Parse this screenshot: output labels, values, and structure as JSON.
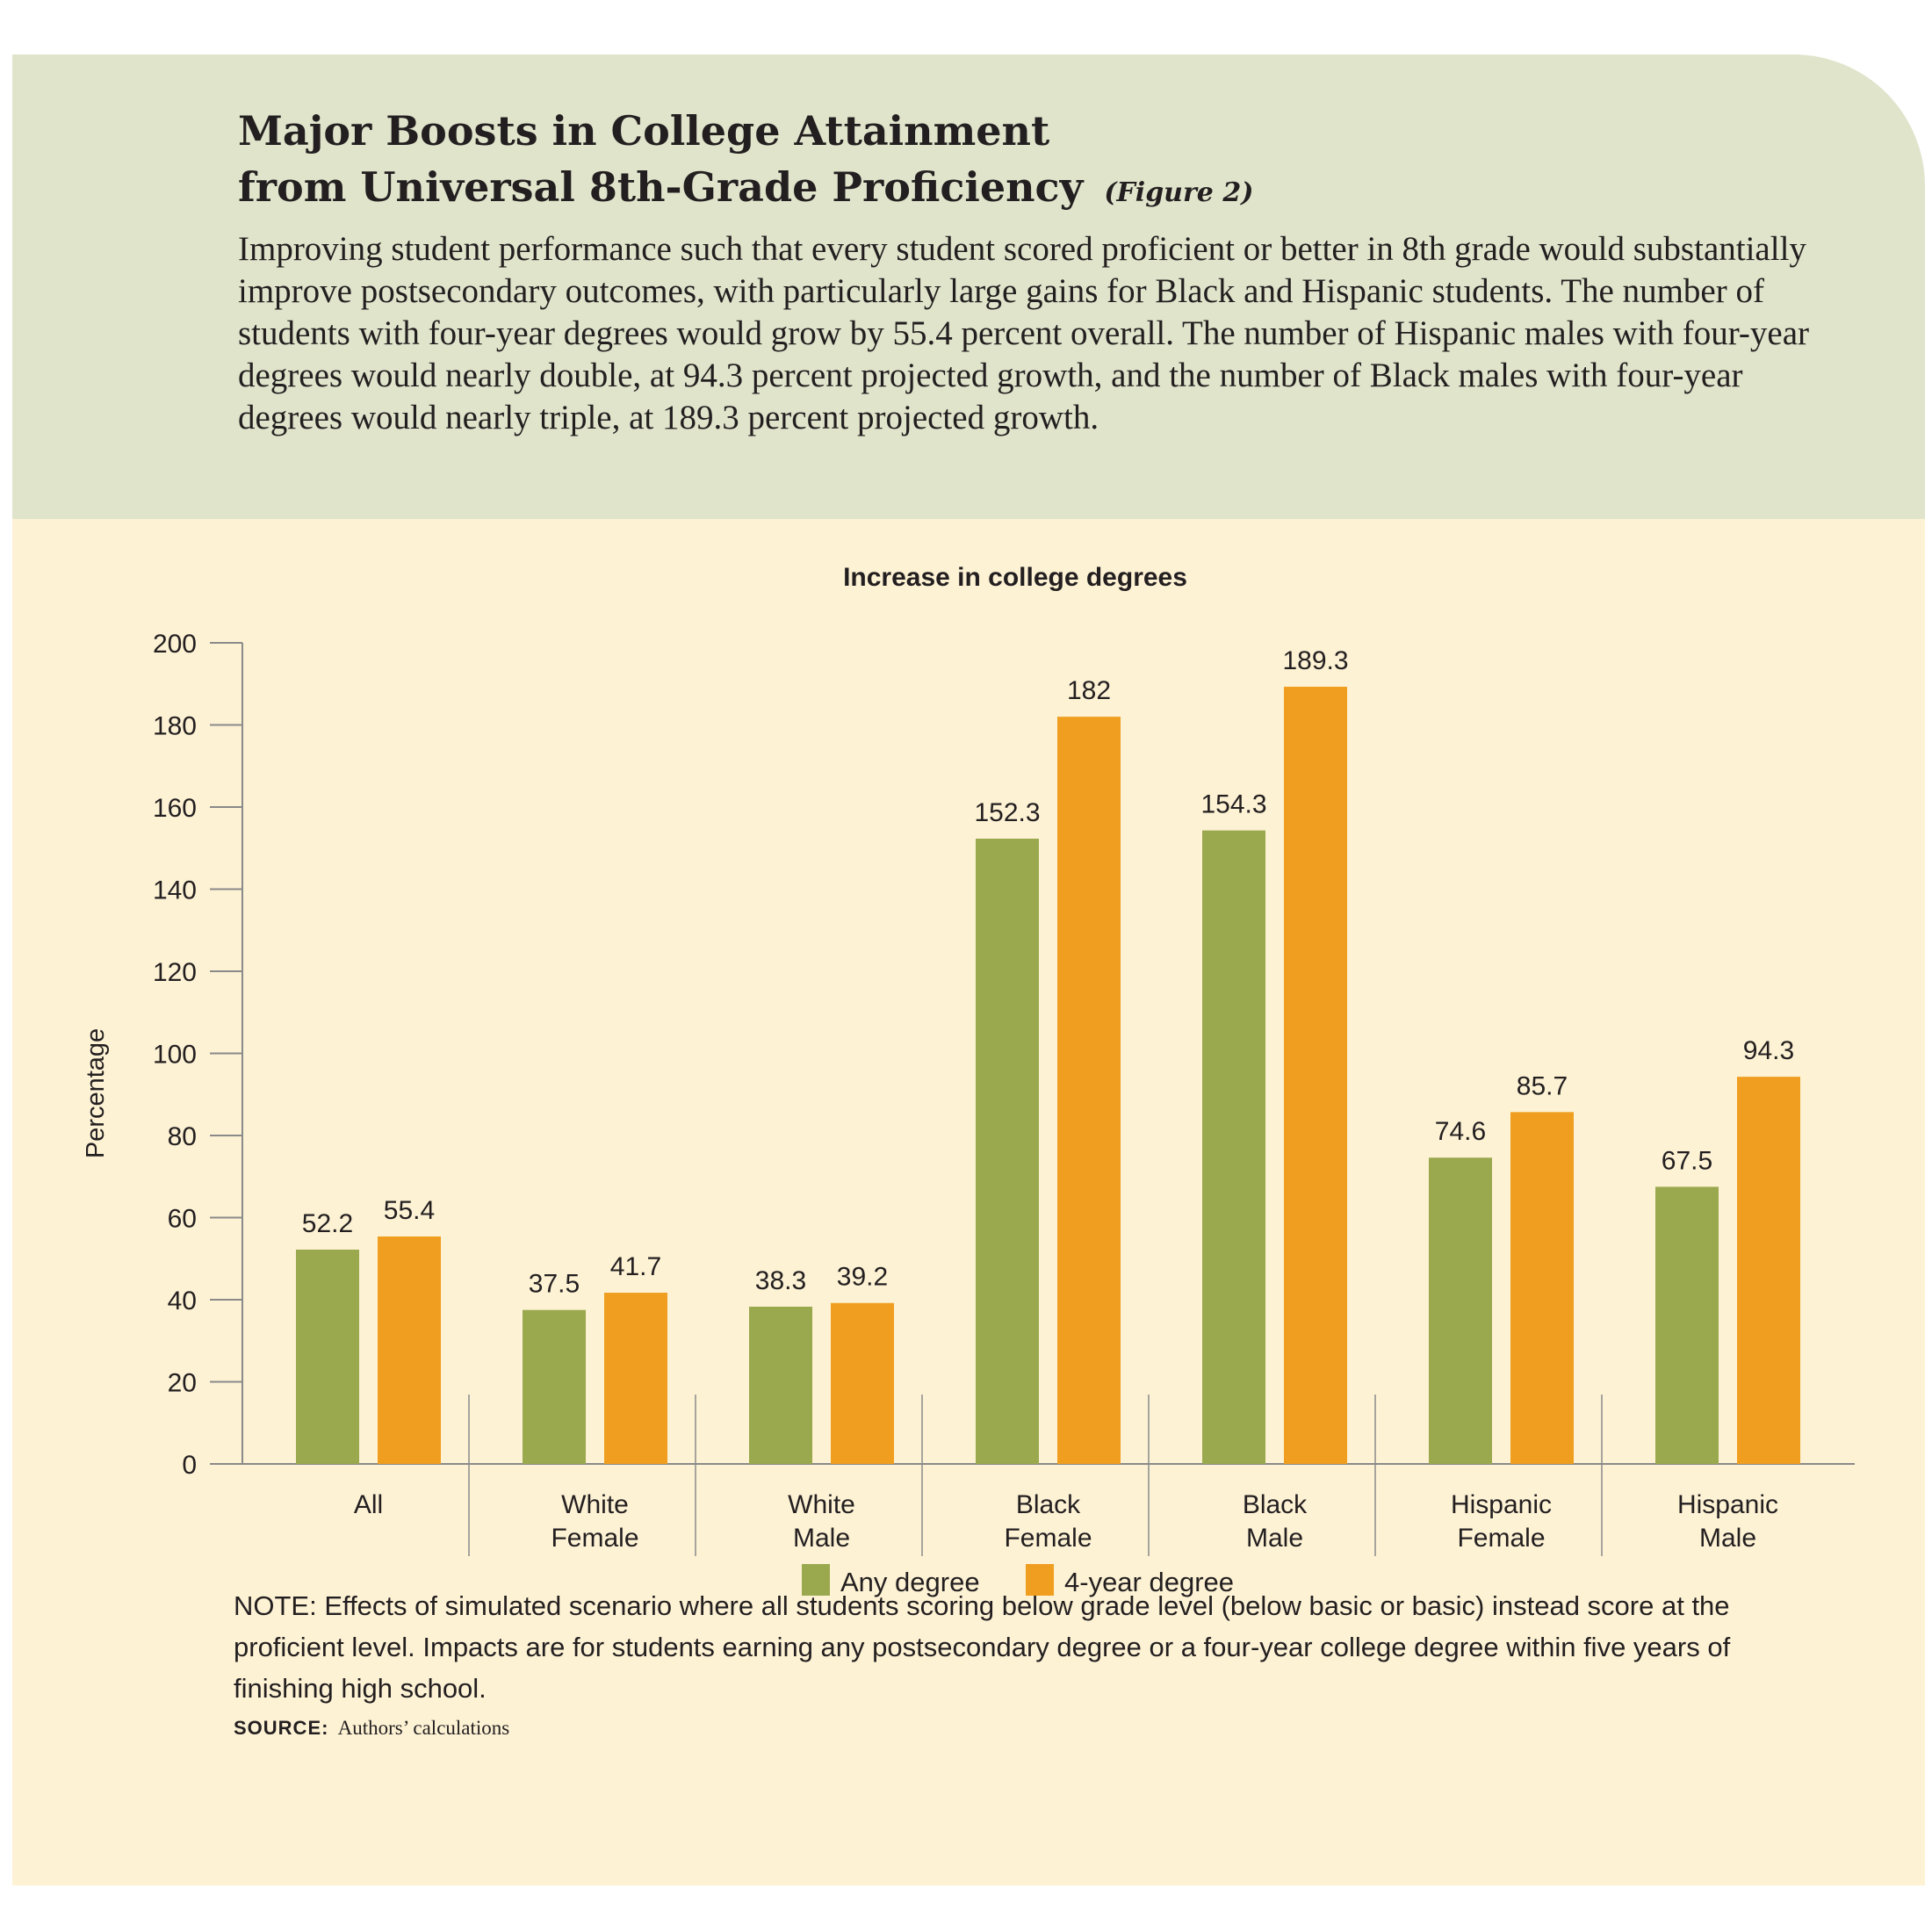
{
  "header": {
    "title_line1": "Major Boosts in College Attainment",
    "title_line2": "from Universal 8th-Grade Proficiency",
    "figure_label": "(Figure 2)",
    "description": "Improving student performance such that every student scored proficient or better in 8th grade would substantially improve postsecondary outcomes, with particularly large gains for Black and Hispanic students. The number of students with four-year degrees would grow by 55.4 percent overall. The number of Hispanic males with four-year degrees would nearly double, at 94.3 percent projected growth, and the number of Black males with four-year degrees would nearly triple, at 189.3 percent projected growth."
  },
  "colors": {
    "header_bg": "#e0e4cb",
    "body_bg": "#fdf2d4",
    "any_degree": "#9aa84e",
    "four_year_degree": "#f09e1f"
  },
  "chart_data": {
    "type": "bar",
    "title": "Increase in college degrees",
    "ylabel": "Percentage",
    "xlabel": "",
    "ylim": [
      0,
      200
    ],
    "yticks": [
      0,
      20,
      40,
      60,
      80,
      100,
      120,
      140,
      160,
      180,
      200
    ],
    "categories": [
      [
        "All"
      ],
      [
        "White",
        "Female"
      ],
      [
        "White",
        "Male"
      ],
      [
        "Black",
        "Female"
      ],
      [
        "Black",
        "Male"
      ],
      [
        "Hispanic",
        "Female"
      ],
      [
        "Hispanic",
        "Male"
      ]
    ],
    "series": [
      {
        "name": "Any degree",
        "color": "#9aa84e",
        "values": [
          52.2,
          37.5,
          38.3,
          152.3,
          154.3,
          74.6,
          67.5
        ]
      },
      {
        "name": "4-year degree",
        "color": "#f09e1f",
        "values": [
          55.4,
          41.7,
          39.2,
          182,
          189.3,
          85.7,
          94.3
        ]
      }
    ],
    "legend": "bottom-center",
    "grid": false
  },
  "note": "NOTE:  Effects of simulated scenario where all students scoring below grade level (below basic or basic) instead score at the proficient level. Impacts are for students earning any postsecondary degree or a four-year college degree within five years of finishing high school.",
  "source": {
    "label": "SOURCE:",
    "text": "Authors’ calculations"
  }
}
